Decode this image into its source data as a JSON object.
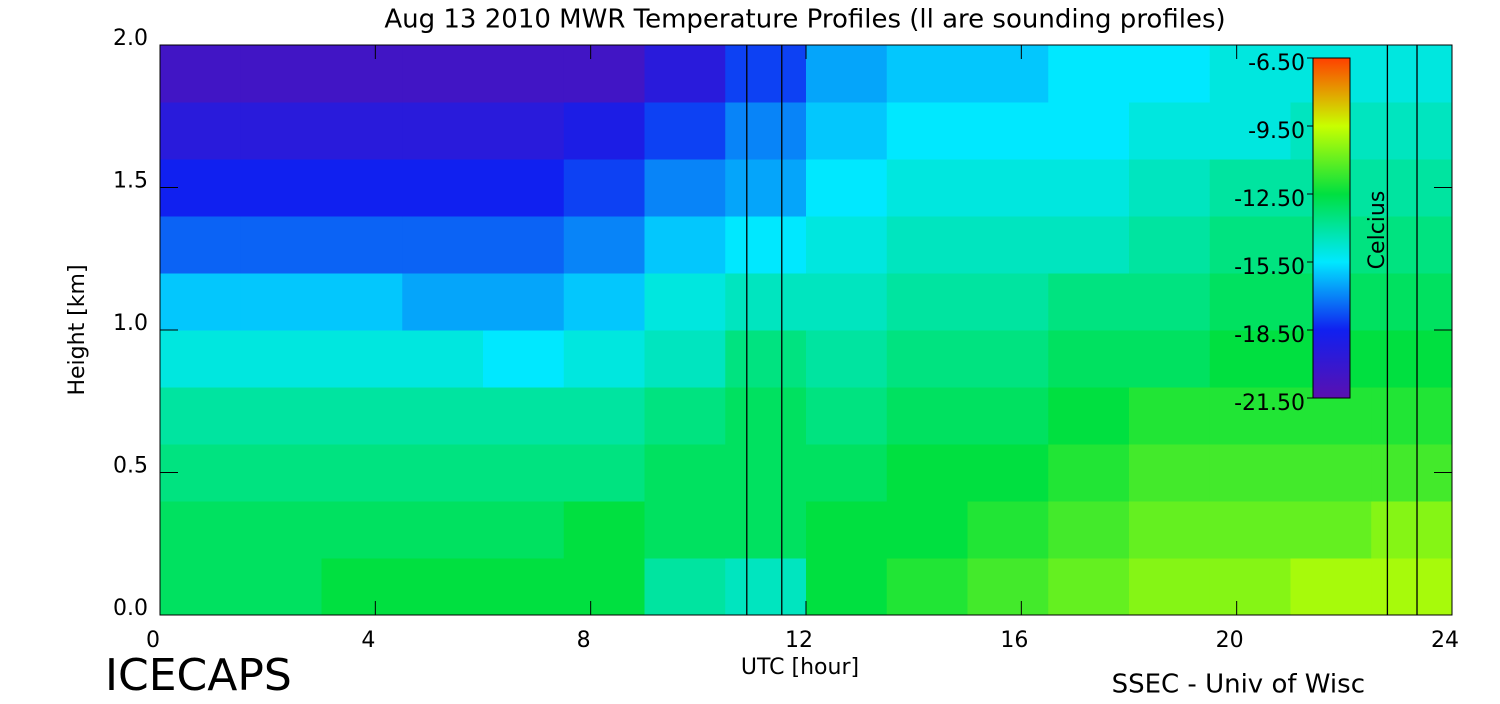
{
  "chart_data": {
    "type": "heatmap",
    "title": "Aug 13 2010 MWR Temperature Profiles (ll are sounding profiles)",
    "xlabel": "UTC [hour]",
    "ylabel": "Height [km]",
    "x": [
      0.75,
      2.25,
      3.75,
      5.25,
      6.75,
      8.25,
      9.75,
      11.25,
      12.75,
      14.25,
      15.75,
      17.25,
      18.75,
      20.25,
      21.75,
      23.25
    ],
    "y": [
      0.1,
      0.3,
      0.5,
      0.7,
      0.9,
      1.1,
      1.3,
      1.5,
      1.7,
      1.9
    ],
    "values": [
      [
        -13,
        -13,
        -12.5,
        -12.5,
        -12.5,
        -12.5,
        -14,
        -14.5,
        -12.5,
        -12,
        -11.5,
        -11,
        -10.5,
        -10.5,
        -10,
        -10
      ],
      [
        -13,
        -13,
        -13,
        -13,
        -13,
        -12.5,
        -13,
        -13,
        -12.5,
        -12.5,
        -12,
        -11.5,
        -11,
        -11,
        -11,
        -10.5
      ],
      [
        -13.5,
        -13.5,
        -13.5,
        -13.5,
        -13.5,
        -13.5,
        -13,
        -13,
        -13,
        -12.5,
        -12.5,
        -12,
        -11.5,
        -11.5,
        -11.5,
        -11.5
      ],
      [
        -14,
        -14,
        -14,
        -14,
        -14,
        -14,
        -13.5,
        -13,
        -13.5,
        -13,
        -13,
        -12.5,
        -12,
        -12,
        -12,
        -12
      ],
      [
        -15,
        -15,
        -15,
        -15,
        -15.5,
        -15,
        -14.5,
        -13.5,
        -14,
        -13.5,
        -13.5,
        -13,
        -13,
        -12.5,
        -12.5,
        -12.5
      ],
      [
        -16,
        -16,
        -16,
        -16.5,
        -16.5,
        -16,
        -15,
        -14.5,
        -14.5,
        -14,
        -14,
        -13.5,
        -13.5,
        -13,
        -13,
        -13
      ],
      [
        -17.5,
        -17.5,
        -17.5,
        -17.5,
        -17.5,
        -17,
        -16,
        -15.5,
        -15,
        -14.5,
        -14.5,
        -14.5,
        -14,
        -13.5,
        -13.5,
        -13.5
      ],
      [
        -18.5,
        -18.5,
        -18.5,
        -18.5,
        -18.5,
        -18,
        -17,
        -16.5,
        -15.5,
        -15,
        -15,
        -15,
        -14.5,
        -14,
        -14,
        -14
      ],
      [
        -19.5,
        -19.5,
        -19.5,
        -19.5,
        -19.5,
        -19,
        -18,
        -17,
        -16,
        -15.5,
        -15.5,
        -15.5,
        -15,
        -15,
        -14.5,
        -14.5
      ],
      [
        -20.5,
        -20.5,
        -20.5,
        -20.5,
        -20.5,
        -20.5,
        -19.5,
        -18,
        -16.5,
        -16,
        -16,
        -15.5,
        -15.5,
        -15,
        -15,
        -15
      ]
    ],
    "xlim": [
      0,
      24
    ],
    "xticks": [
      0,
      4,
      8,
      12,
      16,
      20,
      24
    ],
    "ylim": [
      0,
      2
    ],
    "yticks": [
      {
        "value": 0,
        "label": "0.0"
      },
      {
        "value": 0.5,
        "label": "0.5"
      },
      {
        "value": 1,
        "label": "1.0"
      },
      {
        "value": 1.5,
        "label": "1.5"
      },
      {
        "value": 2,
        "label": "2.0"
      }
    ],
    "colorbar": {
      "label": "Celcius",
      "lim": [
        -21.5,
        -6.5
      ],
      "ticks": [
        {
          "value": -6.5,
          "label": "-6.50"
        },
        {
          "value": -9.5,
          "label": "-9.50"
        },
        {
          "value": -12.5,
          "label": "-12.50"
        },
        {
          "value": -15.5,
          "label": "-15.50"
        },
        {
          "value": -18.5,
          "label": "-18.50"
        },
        {
          "value": -21.5,
          "label": "-21.50"
        }
      ],
      "colors": [
        "#5a10b0",
        "#1020f0",
        "#00e8ff",
        "#00e040",
        "#c8ff00",
        "#ff4000"
      ]
    },
    "soundings": [
      10.9,
      11.55,
      22.8,
      23.35
    ],
    "sounding_color": "#000000"
  },
  "branding": {
    "left": "ICECAPS",
    "right": "SSEC - Univ of Wisc"
  }
}
